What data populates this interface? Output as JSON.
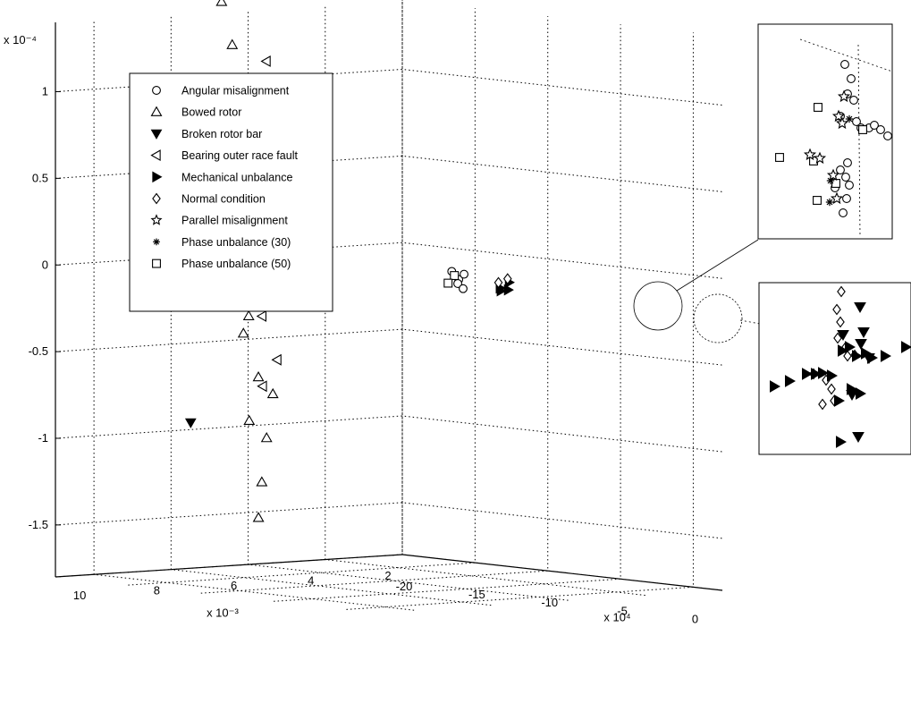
{
  "chart_data": {
    "type": "scatter",
    "projection": "3d",
    "grid": true,
    "legend_placement": "top-left",
    "axes": {
      "z": {
        "ticks": [
          "1",
          "0.5",
          "0",
          "-0.5",
          "-1",
          "-1.5"
        ],
        "multiplier": "x 10⁻⁴",
        "range": [
          -1.8,
          1.4
        ]
      },
      "y": {
        "ticks": [
          "10",
          "8",
          "6",
          "4",
          "2"
        ],
        "multiplier": "x 10⁻³",
        "range": [
          2,
          11
        ]
      },
      "x": {
        "ticks": [
          "-20",
          "-15",
          "-10",
          "-5",
          "0"
        ],
        "multiplier": "x 10⁴",
        "range": [
          -20,
          2
        ]
      }
    },
    "legend": [
      {
        "label": "Angular misalignment",
        "marker": "circle"
      },
      {
        "label": "Bowed rotor",
        "marker": "triangle-up"
      },
      {
        "label": "Broken rotor bar",
        "marker": "triangle-down-filled"
      },
      {
        "label": "Bearing outer race fault",
        "marker": "triangle-left"
      },
      {
        "label": "Mechanical unbalance",
        "marker": "triangle-right-filled"
      },
      {
        "label": "Normal condition",
        "marker": "diamond"
      },
      {
        "label": "Parallel misalignment",
        "marker": "star"
      },
      {
        "label": "Phase unbalance (30)",
        "marker": "asterisk"
      },
      {
        "label": "Phase unbalance (50)",
        "marker": "square"
      }
    ],
    "series": [
      {
        "name": "Bowed rotor",
        "marker": "triangle-up",
        "values": [
          [
            -20.5,
            6.5,
            1.45
          ],
          [
            -20.3,
            6.3,
            1.2
          ],
          [
            -20.2,
            6.5,
            0.95
          ],
          [
            -20.0,
            6.2,
            0.78
          ],
          [
            -19.9,
            6.5,
            0.62
          ],
          [
            -19.7,
            6.0,
            0.55
          ],
          [
            -20.1,
            6.1,
            0.4
          ],
          [
            -19.8,
            6.3,
            0.3
          ],
          [
            -19.6,
            6.2,
            0.15
          ],
          [
            -19.4,
            6.3,
            0.0
          ],
          [
            -19.3,
            6.3,
            -0.1
          ],
          [
            -18.9,
            6.4,
            -0.35
          ],
          [
            -19.0,
            6.5,
            -0.45
          ],
          [
            -18.5,
            6.3,
            -0.7
          ],
          [
            -18.3,
            6.0,
            -0.8
          ],
          [
            -18.6,
            6.5,
            -0.95
          ],
          [
            -18.2,
            6.2,
            -1.05
          ],
          [
            -18.0,
            6.4,
            -1.3
          ],
          [
            -17.7,
            6.6,
            -1.5
          ]
        ]
      },
      {
        "name": "Bearing outer race fault",
        "marker": "triangle-left",
        "values": [
          [
            -19.8,
            5.6,
            1.1
          ],
          [
            -17.5,
            5.9,
            0.4
          ],
          [
            -16.8,
            6.0,
            -0.05
          ],
          [
            -19.0,
            6.1,
            0.28
          ],
          [
            -19.0,
            6.0,
            0.13
          ],
          [
            -18.7,
            6.0,
            -0.05
          ],
          [
            -18.6,
            6.0,
            -0.25
          ],
          [
            -18.5,
            6.2,
            -0.35
          ],
          [
            -18.0,
            6.0,
            -0.6
          ],
          [
            -18.2,
            6.3,
            -0.75
          ],
          [
            -19.5,
            6.3,
            0.65
          ],
          [
            -18.9,
            6.1,
            0.05
          ],
          [
            -15.5,
            6.0,
            0.8
          ],
          [
            -15.0,
            6.1,
            0.22
          ]
        ]
      },
      {
        "name": "Broken rotor bar",
        "marker": "triangle-down-filled",
        "values": [
          [
            -16.0,
            9.0,
            -0.9
          ]
        ]
      },
      {
        "name": "Angular misalignment",
        "marker": "circle",
        "values": [
          [
            -4.2,
            6.5,
            0.0
          ],
          [
            -4.1,
            6.4,
            0.03
          ],
          [
            -4.0,
            6.6,
            -0.02
          ],
          [
            -4.15,
            6.7,
            0.05
          ],
          [
            -3.9,
            6.5,
            -0.05
          ]
        ]
      },
      {
        "name": "Phase unbalance (50)",
        "marker": "square",
        "values": [
          [
            -4.5,
            6.5,
            0.02
          ],
          [
            -4.4,
            6.7,
            -0.02
          ]
        ]
      },
      {
        "name": "Mechanical unbalance",
        "marker": "triangle-right-filled",
        "values": [
          [
            -2.1,
            6.2,
            -0.05
          ],
          [
            -1.9,
            6.3,
            -0.03
          ],
          [
            -1.8,
            6.1,
            0.0
          ],
          [
            -1.6,
            6.2,
            -0.04
          ]
        ]
      },
      {
        "name": "Normal condition",
        "marker": "diamond",
        "values": [
          [
            -2.0,
            6.3,
            0.0
          ],
          [
            -1.9,
            6.1,
            0.02
          ]
        ]
      }
    ]
  },
  "insets": {
    "upper_label": "",
    "lower_label": ""
  }
}
